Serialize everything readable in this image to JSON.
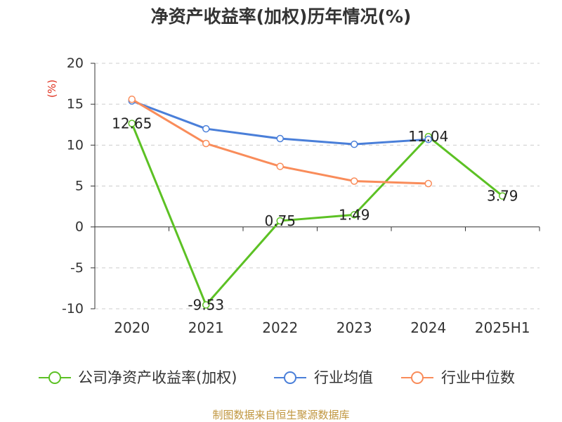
{
  "chart_data": {
    "type": "line",
    "title": "净资产收益率(加权)历年情况(%)",
    "ylabel": "(%)",
    "xlabel": "",
    "categories": [
      "2020",
      "2021",
      "2022",
      "2023",
      "2024",
      "2025H1"
    ],
    "ylim": [
      -10,
      20
    ],
    "yticks": [
      -10,
      -5,
      0,
      5,
      10,
      15,
      20
    ],
    "grid": true,
    "legend_position": "bottom",
    "series": [
      {
        "name": "公司净资产收益率(加权)",
        "color": "#5cc124",
        "data_labels": true,
        "values": [
          12.65,
          -9.53,
          0.75,
          1.49,
          11.04,
          3.79
        ]
      },
      {
        "name": "行业均值",
        "color": "#4a7fd9",
        "data_labels": false,
        "values": [
          15.4,
          12.0,
          10.8,
          10.1,
          10.7,
          null
        ]
      },
      {
        "name": "行业中位数",
        "color": "#f98c5a",
        "data_labels": false,
        "values": [
          15.6,
          10.2,
          7.4,
          5.6,
          5.3,
          null
        ]
      }
    ]
  },
  "colors": {
    "ylabel": "#e0301e",
    "footer": "#c0963f"
  },
  "footer": "制图数据来自恒生聚源数据库"
}
